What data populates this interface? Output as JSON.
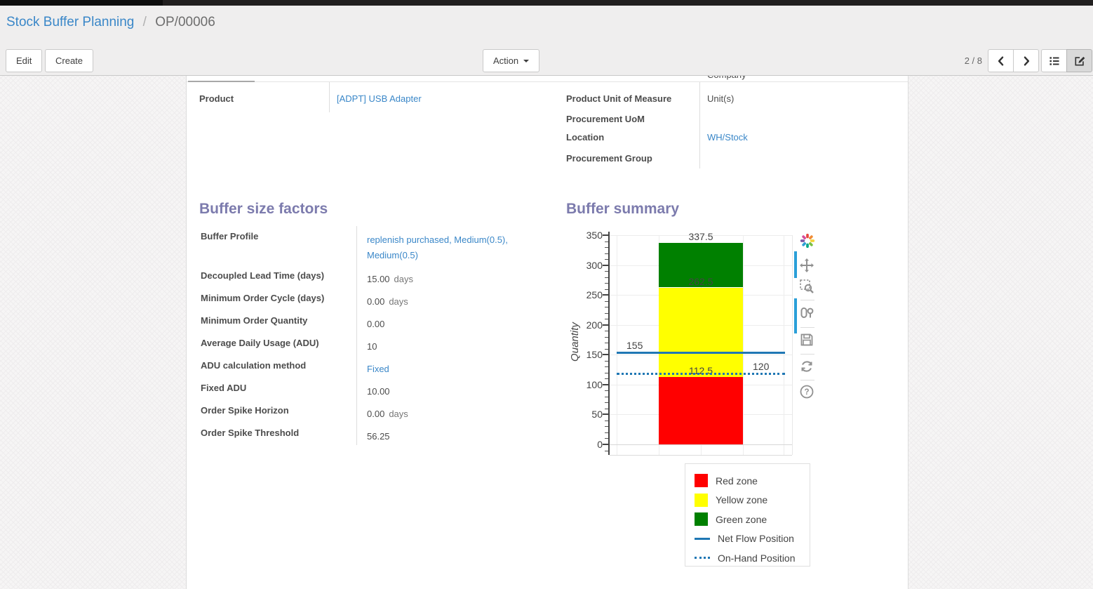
{
  "breadcrumb": {
    "parent": "Stock Buffer Planning",
    "separator": "/",
    "current": "OP/00006"
  },
  "control_panel": {
    "edit_label": "Edit",
    "create_label": "Create",
    "action_label": "Action",
    "pager_value": "2 / 8"
  },
  "form": {
    "clipped_top_value": "Company",
    "left_fields": [
      {
        "label": "Product",
        "value": "[ADPT] USB Adapter"
      }
    ],
    "right_fields": [
      {
        "label": "Product Unit of Measure",
        "value": "Unit(s)"
      },
      {
        "label": "Procurement UoM",
        "value": ""
      },
      {
        "label": "Location",
        "value": "WH/Stock"
      },
      {
        "label": "Procurement Group",
        "value": ""
      }
    ],
    "factors_section": {
      "title": "Buffer size factors",
      "fields": [
        {
          "label": "Buffer Profile",
          "value": "replenish purchased, Medium(0.5), Medium(0.5)"
        },
        {
          "label": "Decoupled Lead Time (days)",
          "value": "15.00",
          "unit": "days"
        },
        {
          "label": "Minimum Order Cycle (days)",
          "value": "0.00",
          "unit": "days"
        },
        {
          "label": "Minimum Order Quantity",
          "value": "0.00"
        },
        {
          "label": "Average Daily Usage (ADU)",
          "value": "10"
        },
        {
          "label": "ADU calculation method",
          "value": "Fixed"
        },
        {
          "label": "Fixed ADU",
          "value": "10.00"
        },
        {
          "label": "Order Spike Horizon",
          "value": "0.00",
          "unit": "days"
        },
        {
          "label": "Order Spike Threshold",
          "value": "56.25"
        }
      ]
    },
    "summary_section": {
      "title": "Buffer summary"
    }
  },
  "chart_data": {
    "type": "bar",
    "title": "Buffer summary",
    "ylabel": "Quantity",
    "ylim": [
      0,
      350
    ],
    "yticks": [
      0,
      50,
      100,
      150,
      200,
      250,
      300,
      350
    ],
    "grid": true,
    "zones": [
      {
        "name": "Red zone",
        "from": 0,
        "to": 112.5,
        "color": "#ff0000"
      },
      {
        "name": "Yellow zone",
        "from": 112.5,
        "to": 262.5,
        "color": "#ffff00"
      },
      {
        "name": "Green zone",
        "from": 262.5,
        "to": 337.5,
        "color": "#008000"
      }
    ],
    "bar_labels": [
      {
        "text": "337.5",
        "value": 337.5
      },
      {
        "text": "262.5",
        "value": 262.5
      },
      {
        "text": "112.5",
        "value": 112.5
      }
    ],
    "lines": [
      {
        "name": "Net Flow Position",
        "value": 155,
        "style": "solid",
        "color": "#1f77b4",
        "label": "155",
        "label_side": "left"
      },
      {
        "name": "On-Hand Position",
        "value": 120,
        "style": "dotted",
        "color": "#1f77b4",
        "label": "120",
        "label_side": "right"
      }
    ],
    "legend": [
      {
        "label": "Red zone",
        "swatch": "square",
        "color": "#ff0000"
      },
      {
        "label": "Yellow zone",
        "swatch": "square",
        "color": "#ffff00"
      },
      {
        "label": "Green zone",
        "swatch": "square",
        "color": "#008000"
      },
      {
        "label": "Net Flow Position",
        "swatch": "line",
        "color": "#1f77b4"
      },
      {
        "label": "On-Hand Position",
        "swatch": "dotted-line",
        "color": "#1f77b4"
      }
    ],
    "legend_position": "bottom-right"
  },
  "colors": {
    "link": "#3a87c8",
    "section_heading": "#7c7bad",
    "modebar_active": "#2a9fd8"
  }
}
